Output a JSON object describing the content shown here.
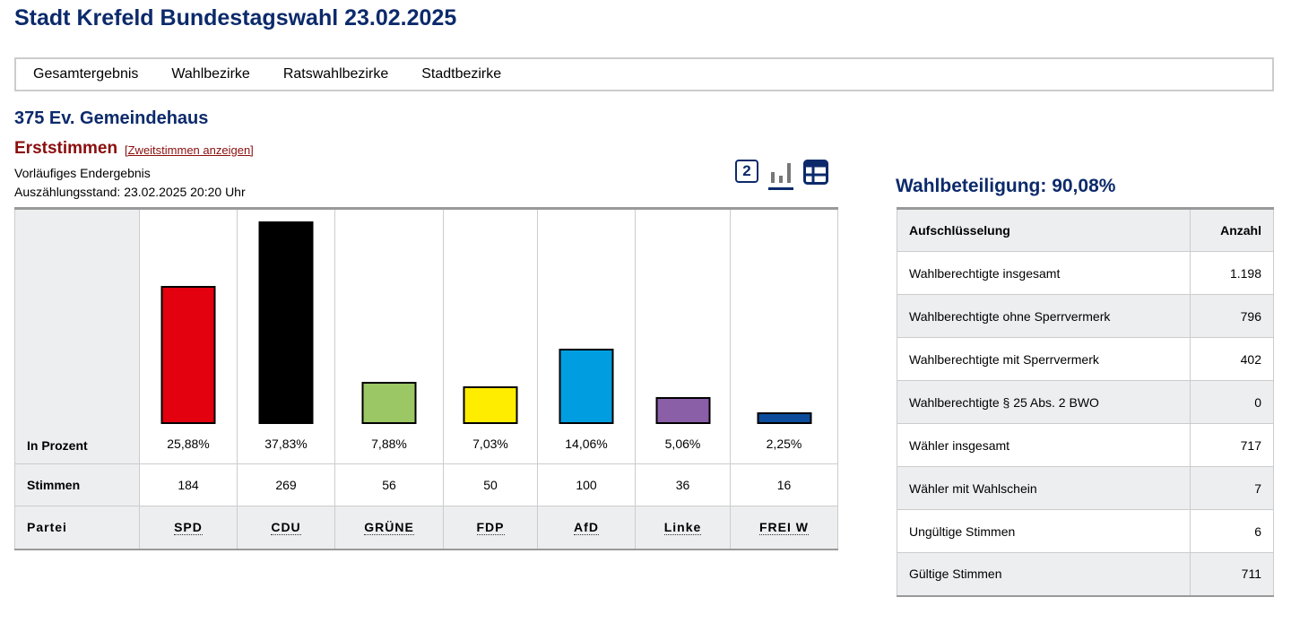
{
  "title": "Stadt Krefeld Bundestagswahl 23.02.2025",
  "nav": [
    "Gesamtergebnis",
    "Wahlbezirke",
    "Ratswahlbezirke",
    "Stadtbezirke"
  ],
  "district": "375 Ev. Gemeindehaus",
  "vote_type": "Erststimmen",
  "switch_link": "[Zweitstimmen anzeigen]",
  "status": "Vorläufiges Endergebnis",
  "count_state": "Auszählungsstand: 23.02.2025 20:20 Uhr",
  "view_icons": {
    "second_vote": "2",
    "chart": "bar-chart-icon",
    "table": "table-icon"
  },
  "results": {
    "labels": {
      "percent": "In Prozent",
      "votes": "Stimmen",
      "party": "Partei"
    }
  },
  "chart_data": {
    "type": "bar",
    "categories": [
      "SPD",
      "CDU",
      "GRÜNE",
      "FDP",
      "AfD",
      "Linke",
      "FREI W"
    ],
    "percent_labels": [
      "25,88%",
      "37,83%",
      "7,88%",
      "7,03%",
      "14,06%",
      "5,06%",
      "2,25%"
    ],
    "values": [
      25.88,
      37.83,
      7.88,
      7.03,
      14.06,
      5.06,
      2.25
    ],
    "votes": [
      "184",
      "269",
      "56",
      "50",
      "100",
      "36",
      "16"
    ],
    "colors": [
      "#e3000f",
      "#000000",
      "#9bc765",
      "#ffed00",
      "#009ee0",
      "#8b5ea8",
      "#0b4d9c"
    ]
  },
  "turnout": "Wahlbeteiligung: 90,08%",
  "stats": {
    "headers": [
      "Aufschlüsselung",
      "Anzahl"
    ],
    "rows": [
      [
        "Wahlberechtigte insgesamt",
        "1.198"
      ],
      [
        "Wahlberechtigte ohne Sperrvermerk",
        "796"
      ],
      [
        "Wahlberechtigte mit Sperrvermerk",
        "402"
      ],
      [
        "Wahlberechtigte § 25 Abs. 2 BWO",
        "0"
      ],
      [
        "Wähler insgesamt",
        "717"
      ],
      [
        "Wähler mit Wahlschein",
        "7"
      ],
      [
        "Ungültige Stimmen",
        "6"
      ],
      [
        "Gültige Stimmen",
        "711"
      ]
    ]
  }
}
